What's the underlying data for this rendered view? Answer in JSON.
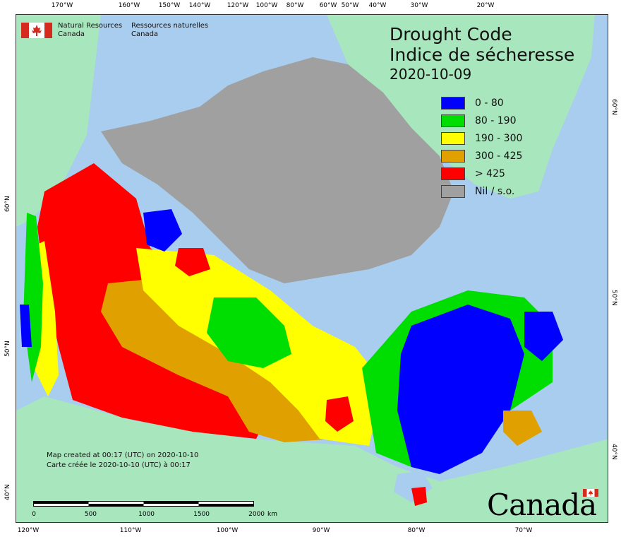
{
  "map": {
    "title_en": "Drought Code",
    "title_fr": "Indice de sécheresse",
    "date": "2020-10-09",
    "agency_en": [
      "Natural Resources",
      "Canada"
    ],
    "agency_fr": [
      "Ressources naturelles",
      "Canada"
    ],
    "created_en": "Map created at 00:17 (UTC) on 2020-10-10",
    "created_fr": "Carte créée le 2020-10-10 (UTC) à 00:17",
    "wordmark": "Canada",
    "legend": [
      {
        "label": "0 - 80",
        "color": "#0000ff"
      },
      {
        "label": "80 - 190",
        "color": "#00dd00"
      },
      {
        "label": "190 - 300",
        "color": "#ffff00"
      },
      {
        "label": "300 - 425",
        "color": "#e0a000"
      },
      {
        "label": "> 425",
        "color": "#ff0000"
      },
      {
        "label": "Nil / s.o.",
        "color": "#a0a0a0"
      }
    ],
    "scale": {
      "ticks": [
        "0",
        "500",
        "1000",
        "1500",
        "2000"
      ],
      "unit": "km"
    },
    "top_ticks": [
      "170°W",
      "160°W",
      "150°W",
      "140°W",
      "120°W",
      "100°W",
      "80°W",
      "60°W",
      "50°W",
      "40°W",
      "30°W",
      "20°W"
    ],
    "bottom_ticks": [
      "120°W",
      "110°W",
      "100°W",
      "90°W",
      "80°W",
      "70°W"
    ],
    "left_ticks": [
      "60°N",
      "50°N",
      "40°N"
    ],
    "right_ticks": [
      "60°N",
      "50°N",
      "40°N"
    ],
    "colors": {
      "ocean": "#a9cdee",
      "land_outside": "#a8e6bd",
      "arctic_islands": "#a0a0a0"
    }
  }
}
